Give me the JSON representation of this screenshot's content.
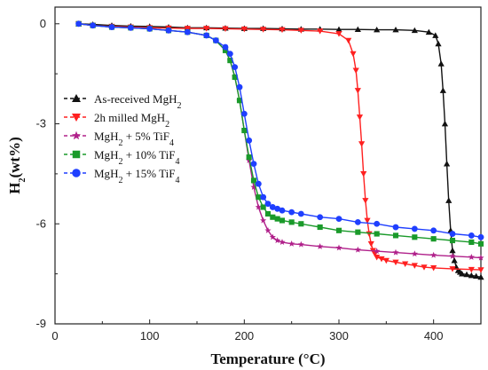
{
  "chart_data": {
    "type": "line",
    "xlabel": "Temperature (°C)",
    "ylabel": "H2(wt%)",
    "xlim": [
      0,
      450
    ],
    "ylim": [
      -9,
      0.5
    ],
    "x_ticks": [
      0,
      100,
      200,
      300,
      400
    ],
    "y_ticks": [
      0,
      -3,
      -6,
      -9
    ],
    "x_tick_labels": [
      "0",
      "100",
      "200",
      "300",
      "400"
    ],
    "y_tick_labels": [
      "0",
      "-3",
      "-6",
      "-9"
    ],
    "legend_position": "left-center",
    "series": [
      {
        "name": "As-received MgH2",
        "color": "#111111",
        "marker": "triangle-up",
        "x": [
          25,
          40,
          60,
          80,
          100,
          120,
          140,
          160,
          180,
          200,
          220,
          240,
          260,
          280,
          300,
          320,
          340,
          360,
          380,
          395,
          402,
          405,
          408,
          410,
          412,
          414,
          416,
          418,
          420,
          422,
          424,
          426,
          428,
          430,
          435,
          440,
          445,
          450
        ],
        "y": [
          0.0,
          -0.02,
          -0.05,
          -0.07,
          -0.08,
          -0.1,
          -0.12,
          -0.12,
          -0.13,
          -0.14,
          -0.14,
          -0.15,
          -0.16,
          -0.16,
          -0.17,
          -0.17,
          -0.18,
          -0.18,
          -0.2,
          -0.25,
          -0.35,
          -0.6,
          -1.2,
          -2.0,
          -3.0,
          -4.2,
          -5.3,
          -6.2,
          -6.8,
          -7.1,
          -7.3,
          -7.4,
          -7.45,
          -7.5,
          -7.52,
          -7.55,
          -7.57,
          -7.6
        ]
      },
      {
        "name": "2h milled MgH2",
        "color": "#ff2020",
        "marker": "triangle-down",
        "x": [
          25,
          40,
          60,
          80,
          100,
          120,
          140,
          160,
          180,
          200,
          220,
          240,
          260,
          280,
          300,
          310,
          315,
          318,
          320,
          322,
          324,
          326,
          328,
          330,
          332,
          334,
          336,
          338,
          340,
          345,
          350,
          360,
          370,
          380,
          390,
          400,
          420,
          440,
          450
        ],
        "y": [
          0.0,
          -0.05,
          -0.08,
          -0.1,
          -0.12,
          -0.13,
          -0.14,
          -0.14,
          -0.15,
          -0.16,
          -0.17,
          -0.18,
          -0.2,
          -0.22,
          -0.3,
          -0.5,
          -0.9,
          -1.4,
          -2.0,
          -2.8,
          -3.6,
          -4.5,
          -5.3,
          -5.9,
          -6.3,
          -6.6,
          -6.8,
          -6.9,
          -7.0,
          -7.05,
          -7.1,
          -7.15,
          -7.2,
          -7.25,
          -7.3,
          -7.32,
          -7.35,
          -7.37,
          -7.38
        ]
      },
      {
        "name": "MgH2 + 5% TiF4",
        "color": "#b0208a",
        "marker": "star",
        "x": [
          25,
          40,
          60,
          80,
          100,
          120,
          140,
          160,
          170,
          180,
          185,
          190,
          195,
          200,
          205,
          210,
          215,
          220,
          225,
          230,
          235,
          240,
          250,
          260,
          280,
          300,
          320,
          340,
          360,
          380,
          400,
          420,
          440,
          450
        ],
        "y": [
          0.0,
          -0.05,
          -0.1,
          -0.12,
          -0.15,
          -0.2,
          -0.25,
          -0.35,
          -0.5,
          -0.8,
          -1.1,
          -1.6,
          -2.3,
          -3.2,
          -4.1,
          -4.9,
          -5.5,
          -5.9,
          -6.2,
          -6.4,
          -6.5,
          -6.55,
          -6.6,
          -6.62,
          -6.68,
          -6.72,
          -6.78,
          -6.82,
          -6.86,
          -6.9,
          -6.94,
          -6.97,
          -7.0,
          -7.02
        ]
      },
      {
        "name": "MgH2 + 10% TiF4",
        "color": "#1a9a2a",
        "marker": "square",
        "x": [
          25,
          40,
          60,
          80,
          100,
          120,
          140,
          160,
          170,
          180,
          185,
          190,
          195,
          200,
          205,
          210,
          215,
          220,
          225,
          230,
          235,
          240,
          250,
          260,
          280,
          300,
          320,
          340,
          360,
          380,
          400,
          420,
          440,
          450
        ],
        "y": [
          0.0,
          -0.05,
          -0.1,
          -0.12,
          -0.15,
          -0.2,
          -0.25,
          -0.35,
          -0.5,
          -0.8,
          -1.1,
          -1.6,
          -2.3,
          -3.2,
          -4.0,
          -4.7,
          -5.2,
          -5.5,
          -5.7,
          -5.8,
          -5.85,
          -5.9,
          -5.95,
          -6.0,
          -6.1,
          -6.2,
          -6.25,
          -6.3,
          -6.35,
          -6.4,
          -6.45,
          -6.5,
          -6.55,
          -6.6
        ]
      },
      {
        "name": "MgH2 + 15% TiF4",
        "color": "#1f3fff",
        "marker": "circle",
        "x": [
          25,
          40,
          60,
          80,
          100,
          120,
          140,
          160,
          170,
          180,
          185,
          190,
          195,
          200,
          205,
          210,
          215,
          220,
          225,
          230,
          235,
          240,
          250,
          260,
          280,
          300,
          320,
          340,
          360,
          380,
          400,
          420,
          440,
          450
        ],
        "y": [
          0.0,
          -0.05,
          -0.1,
          -0.12,
          -0.15,
          -0.2,
          -0.25,
          -0.35,
          -0.5,
          -0.7,
          -0.9,
          -1.3,
          -1.9,
          -2.7,
          -3.5,
          -4.2,
          -4.8,
          -5.2,
          -5.4,
          -5.5,
          -5.55,
          -5.6,
          -5.65,
          -5.7,
          -5.8,
          -5.85,
          -5.95,
          -6.0,
          -6.1,
          -6.15,
          -6.2,
          -6.3,
          -6.35,
          -6.4
        ]
      }
    ]
  }
}
